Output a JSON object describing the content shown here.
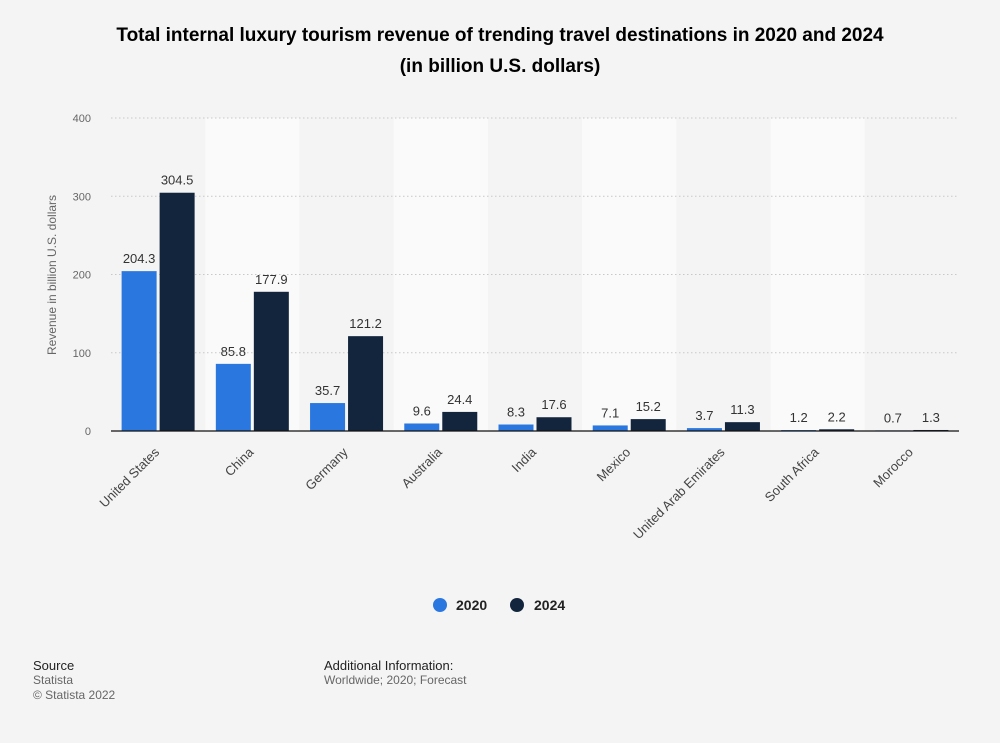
{
  "chart_data": {
    "type": "bar",
    "title": "Total internal luxury tourism revenue of trending travel destinations in 2020 and 2024",
    "subtitle": "(in billion U.S. dollars)",
    "ylabel": "Revenue in billion U.S. dollars",
    "xlabel": "",
    "ylim": [
      0,
      400
    ],
    "yticks": [
      "0",
      "100",
      "200",
      "300",
      "400"
    ],
    "grid": true,
    "legend_position": "bottom-center",
    "categories": [
      "United States",
      "China",
      "Germany",
      "Australia",
      "India",
      "Mexico",
      "United Arab Emirates",
      "South Africa",
      "Morocco"
    ],
    "series": [
      {
        "name": "2020",
        "color": "#2a77e0",
        "values": [
          204.3,
          85.8,
          35.7,
          9.6,
          8.3,
          7.1,
          3.7,
          1.2,
          0.7
        ],
        "labels": [
          "204.3",
          "85.8",
          "35.7",
          "9.6",
          "8.3",
          "7.1",
          "3.7",
          "1.2",
          "0.7"
        ]
      },
      {
        "name": "2024",
        "color": "#13253d",
        "values": [
          304.5,
          177.9,
          121.2,
          24.4,
          17.6,
          15.2,
          11.3,
          2.2,
          1.3
        ],
        "labels": [
          "304.5",
          "177.9",
          "121.2",
          "24.4",
          "17.6",
          "15.2",
          "11.3",
          "2.2",
          "1.3"
        ]
      }
    ]
  },
  "footer": {
    "source_heading": "Source",
    "source_name": "Statista",
    "copyright": "© Statista 2022",
    "info_heading": "Additional Information:",
    "info_text": "Worldwide; 2020; Forecast"
  }
}
